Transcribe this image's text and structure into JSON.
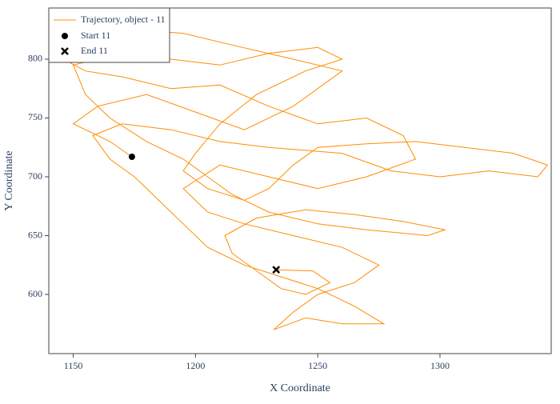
{
  "chart_data": {
    "type": "line",
    "xlabel": "X Coordinate",
    "ylabel": "Y Coordinate",
    "xlim": [
      1140,
      1345.5
    ],
    "ylim": [
      549.7,
      843.5
    ],
    "xticks": [
      1150,
      1200,
      1250,
      1300
    ],
    "yticks": [
      600,
      650,
      700,
      750,
      800
    ],
    "legend": "top-left",
    "series": [
      {
        "name": "Trajectory, object - 11",
        "color": "#ff8c00",
        "x": [
          1174,
          1165,
          1150,
          1160,
          1180,
          1200,
          1220,
          1240,
          1260,
          1240,
          1215,
          1195,
          1175,
          1160,
          1146,
          1155,
          1170,
          1190,
          1210,
          1230,
          1250,
          1270,
          1285,
          1290,
          1270,
          1250,
          1230,
          1210,
          1195,
          1205,
          1220,
          1240,
          1260,
          1275,
          1265,
          1250,
          1240,
          1232,
          1245,
          1260,
          1277,
          1265,
          1250,
          1235,
          1220,
          1205,
          1195,
          1185,
          1175,
          1165,
          1158,
          1170,
          1190,
          1210,
          1230,
          1260,
          1280,
          1300,
          1320,
          1340,
          1344,
          1330,
          1310,
          1290,
          1270,
          1250,
          1240,
          1230,
          1220,
          1205,
          1195,
          1200,
          1210,
          1225,
          1245,
          1260,
          1250,
          1230,
          1210,
          1190,
          1170,
          1150,
          1155,
          1165,
          1180,
          1195,
          1205,
          1215,
          1230,
          1250,
          1270,
          1295,
          1302,
          1285,
          1265,
          1245,
          1225,
          1212,
          1215,
          1225,
          1235,
          1245,
          1255,
          1248,
          1233
        ],
        "y": [
          717,
          730,
          745,
          760,
          770,
          755,
          740,
          760,
          790,
          800,
          812,
          822,
          825,
          812,
          800,
          790,
          785,
          775,
          778,
          760,
          745,
          750,
          735,
          715,
          700,
          690,
          700,
          710,
          690,
          670,
          660,
          650,
          640,
          625,
          610,
          600,
          585,
          570,
          580,
          575,
          575,
          590,
          605,
          615,
          625,
          640,
          660,
          680,
          700,
          715,
          735,
          745,
          740,
          730,
          725,
          720,
          705,
          700,
          705,
          700,
          710,
          720,
          725,
          730,
          728,
          725,
          710,
          690,
          680,
          690,
          705,
          720,
          745,
          770,
          790,
          800,
          810,
          805,
          795,
          800,
          805,
          795,
          770,
          750,
          730,
          715,
          700,
          685,
          670,
          660,
          655,
          650,
          655,
          662,
          668,
          672,
          665,
          650,
          635,
          620,
          605,
          600,
          610,
          620,
          621
        ]
      }
    ],
    "markers": [
      {
        "name": "Start 11",
        "symbol": "circle",
        "color": "#000000",
        "x": 1174,
        "y": 717
      },
      {
        "name": "End 11",
        "symbol": "x",
        "color": "#000000",
        "x": 1233,
        "y": 621
      }
    ]
  }
}
